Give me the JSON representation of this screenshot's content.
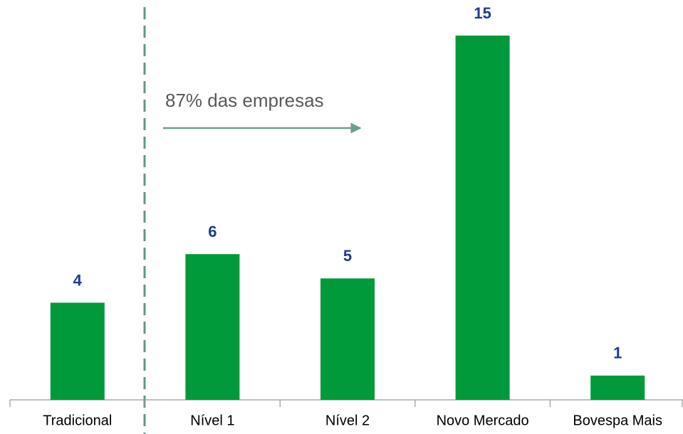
{
  "chart_data": {
    "type": "bar",
    "categories": [
      "Tradicional",
      "Nível 1",
      "Nível 2",
      "Novo Mercado",
      "Bovespa Mais"
    ],
    "values": [
      4,
      6,
      5,
      15,
      1
    ],
    "color": "#009a3b",
    "ylim": [
      0,
      15
    ],
    "annotation": "87% das empresas"
  }
}
